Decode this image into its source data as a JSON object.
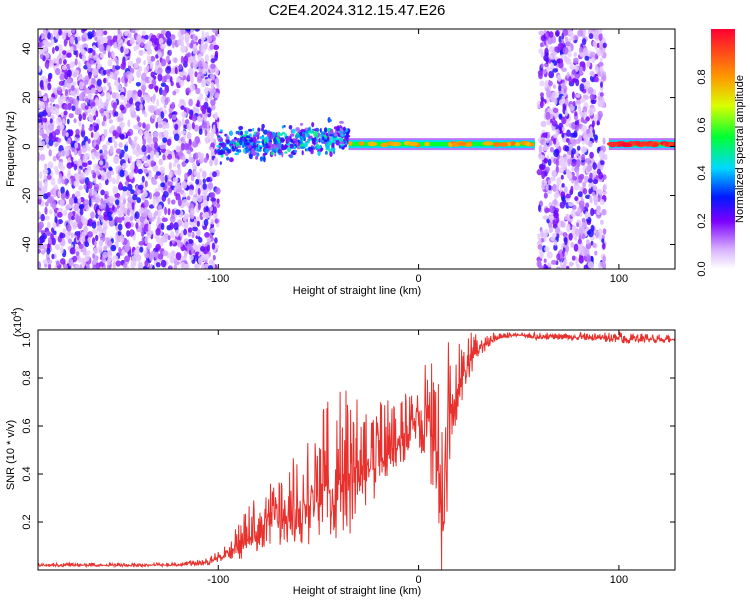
{
  "chart_data": [
    {
      "type": "heatmap",
      "title": "C2E4.2024.312.15.47.E26",
      "xlabel": "Height of straight line (km)",
      "ylabel": "Frequency (Hz)",
      "xlim": [
        -190,
        128
      ],
      "ylim": [
        -50,
        48
      ],
      "xticks": [
        -100,
        0,
        100
      ],
      "yticks": [
        -40,
        -20,
        0,
        20,
        40
      ],
      "colorbar": {
        "label": "Normalized spectral amplitude",
        "range": [
          0,
          1
        ],
        "ticks": [
          0.0,
          0.2,
          0.4,
          0.6,
          0.8
        ]
      },
      "regions": [
        {
          "x": [
            -190,
            -100
          ],
          "freq": [
            -50,
            48
          ],
          "pattern": "broadband noise, amplitude 0.1-0.3"
        },
        {
          "x": [
            -100,
            -35
          ],
          "freq_center": 0,
          "spread": 8,
          "amplitude": 0.4,
          "pattern": "scattered signal near 0 Hz"
        },
        {
          "x": [
            -35,
            58
          ],
          "freq_center": 1,
          "amplitude": 0.85,
          "pattern": "coherent line near 0 Hz"
        },
        {
          "x": [
            60,
            93
          ],
          "freq": [
            -50,
            48
          ],
          "pattern": "broadband noise"
        },
        {
          "x": [
            95,
            128
          ],
          "freq_center": 1,
          "amplitude": 1.0,
          "pattern": "coherent line near 0 Hz"
        }
      ]
    },
    {
      "type": "line",
      "title": "",
      "xlabel": "Height of straight line (km)",
      "ylabel": "SNR (10 * v/v)",
      "scale_label": "(x10",
      "scale_exp": "4",
      "scale_close": ")",
      "xlim": [
        -190,
        128
      ],
      "ylim": [
        0,
        1.0
      ],
      "xticks": [
        -100,
        0,
        100
      ],
      "yticks": [
        0.2,
        0.4,
        0.6,
        0.8,
        1.0
      ],
      "color": "#e8302c",
      "series": [
        {
          "x": [
            -190,
            -150,
            -120,
            -105,
            -95,
            -85,
            -75,
            -65,
            -55,
            -45,
            -35,
            -25,
            -20,
            -15,
            -10,
            -5,
            0,
            5,
            10,
            12,
            15,
            20,
            25,
            30,
            35,
            40,
            50,
            60,
            80,
            100,
            128
          ],
          "values": [
            0.02,
            0.02,
            0.02,
            0.03,
            0.07,
            0.13,
            0.2,
            0.23,
            0.28,
            0.33,
            0.38,
            0.42,
            0.45,
            0.48,
            0.54,
            0.58,
            0.6,
            0.62,
            0.47,
            0.14,
            0.62,
            0.78,
            0.86,
            0.92,
            0.95,
            0.97,
            0.98,
            0.97,
            0.97,
            0.96,
            0.96
          ],
          "upper_envelope": [
            0.03,
            0.03,
            0.03,
            0.05,
            0.12,
            0.27,
            0.35,
            0.45,
            0.6,
            0.72,
            0.78,
            0.65,
            0.7,
            0.72,
            0.75,
            0.75,
            0.74,
            0.99,
            0.99,
            0.98,
            0.98,
            0.98,
            0.99,
            0.99,
            0.99,
            0.99,
            0.99,
            0.99,
            0.99,
            0.99,
            0.98
          ]
        }
      ]
    }
  ],
  "colors": {
    "line": "#e8302c",
    "frame": "#000000"
  }
}
